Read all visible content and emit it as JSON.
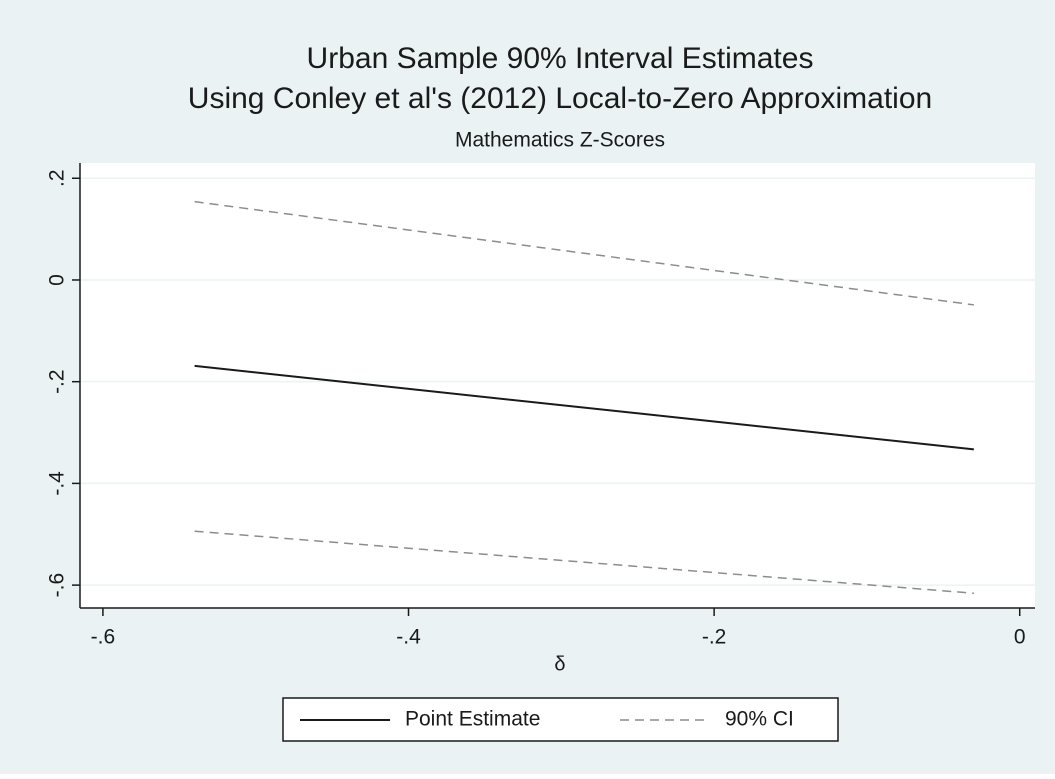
{
  "chart_data": {
    "type": "line",
    "title": "Urban Sample 90% Interval Estimates",
    "subtitle": "Using Conley et al's (2012) Local-to-Zero Approximation",
    "note": "Mathematics Z-Scores",
    "x_label": "δ",
    "x": [
      -0.54,
      -0.03
    ],
    "series": [
      {
        "name": "Point Estimate",
        "color": "#1a1a1a",
        "dashed": false,
        "values": [
          -0.169,
          -0.333
        ]
      },
      {
        "name": "90% CI",
        "color": "#8c8c8c",
        "dashed": true,
        "upper": [
          0.154,
          -0.049
        ],
        "lower": [
          -0.494,
          -0.616
        ]
      }
    ],
    "xlim": [
      -0.615,
      0.01
    ],
    "ylim": [
      -0.645,
      0.23
    ],
    "xticks": [
      {
        "value": -0.6,
        "label": "-.6"
      },
      {
        "value": -0.4,
        "label": "-.4"
      },
      {
        "value": -0.2,
        "label": "-.2"
      },
      0
    ],
    "yticks": [
      {
        "value": 0.2,
        "label": ".2"
      },
      0,
      {
        "value": -0.2,
        "label": "-.2"
      },
      {
        "value": -0.4,
        "label": "-.4"
      },
      {
        "value": -0.6,
        "label": "-.6"
      }
    ],
    "grid": true,
    "legend": "bottom"
  }
}
